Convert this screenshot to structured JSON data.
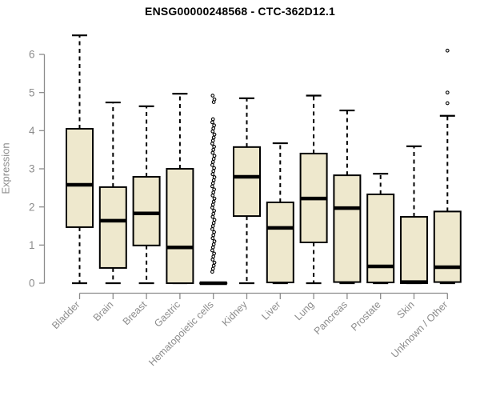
{
  "chart_data": {
    "type": "boxplot",
    "title": "ENSG00000248568 - CTC-362D12.1",
    "ylabel": "Expression",
    "xlabel": "",
    "ylim": [
      0,
      6.6
    ],
    "yticks": [
      0,
      1,
      2,
      3,
      4,
      5,
      6
    ],
    "grid": false,
    "legend": "none",
    "colors": {
      "box_fill": "#EEE8CD",
      "box_border": "#000000",
      "median": "#000000",
      "whisker": "#000000",
      "axis": "#8c8c8c",
      "tick_label": "#8c8c8c",
      "title": "#000000",
      "background": "#ffffff",
      "outlier_fill": "#ffffff"
    },
    "categories": [
      "Bladder",
      "Brain",
      "Breast",
      "Gastric",
      "Hematopoietic cells",
      "Kidney",
      "Liver",
      "Lung",
      "Pancreas",
      "Prostate",
      "Skin",
      "Unknown / Other"
    ],
    "series": [
      {
        "label": "Bladder",
        "whisker_low": 0,
        "q1": 1.47,
        "median": 2.58,
        "q3": 4.05,
        "whisker_high": 6.5,
        "outliers": []
      },
      {
        "label": "Brain",
        "whisker_low": 0,
        "q1": 0.4,
        "median": 1.64,
        "q3": 2.52,
        "whisker_high": 4.74,
        "outliers": []
      },
      {
        "label": "Breast",
        "whisker_low": 0,
        "q1": 0.99,
        "median": 1.83,
        "q3": 2.79,
        "whisker_high": 4.64,
        "outliers": []
      },
      {
        "label": "Gastric",
        "whisker_low": 0,
        "q1": 0,
        "median": 0.94,
        "q3": 3.0,
        "whisker_high": 4.97,
        "outliers": []
      },
      {
        "label": "Hematopoietic cells",
        "whisker_low": 0,
        "q1": 0,
        "median": 0,
        "q3": 0,
        "whisker_high": 0,
        "outliers": [
          0.3,
          0.38,
          0.46,
          0.54,
          0.62,
          0.7,
          0.78,
          0.86,
          0.94,
          1.02,
          1.1,
          1.18,
          1.26,
          1.34,
          1.42,
          1.5,
          1.58,
          1.66,
          1.74,
          1.82,
          1.9,
          1.98,
          2.06,
          2.14,
          2.22,
          2.3,
          2.38,
          2.46,
          2.54,
          2.62,
          2.7,
          2.78,
          2.86,
          2.94,
          3.02,
          3.1,
          3.18,
          3.26,
          3.34,
          3.42,
          3.5,
          3.58,
          3.66,
          3.74,
          3.82,
          3.9,
          3.98,
          4.06,
          4.14,
          4.22,
          4.3,
          4.75,
          4.82,
          4.92
        ]
      },
      {
        "label": "Kidney",
        "whisker_low": 0,
        "q1": 1.76,
        "median": 2.79,
        "q3": 3.57,
        "whisker_high": 4.85,
        "outliers": []
      },
      {
        "label": "Liver",
        "whisker_low": 0,
        "q1": 0.02,
        "median": 1.45,
        "q3": 2.12,
        "whisker_high": 3.67,
        "outliers": []
      },
      {
        "label": "Lung",
        "whisker_low": 0,
        "q1": 1.07,
        "median": 2.22,
        "q3": 3.4,
        "whisker_high": 4.92,
        "outliers": []
      },
      {
        "label": "Pancreas",
        "whisker_low": 0,
        "q1": 0.03,
        "median": 1.97,
        "q3": 2.83,
        "whisker_high": 4.53,
        "outliers": []
      },
      {
        "label": "Prostate",
        "whisker_low": 0,
        "q1": 0.02,
        "median": 0.44,
        "q3": 2.33,
        "whisker_high": 2.87,
        "outliers": []
      },
      {
        "label": "Skin",
        "whisker_low": 0,
        "q1": 0,
        "median": 0.03,
        "q3": 1.74,
        "whisker_high": 3.59,
        "outliers": []
      },
      {
        "label": "Unknown / Other",
        "whisker_low": 0,
        "q1": 0.03,
        "median": 0.42,
        "q3": 1.88,
        "whisker_high": 4.39,
        "outliers": [
          4.72,
          5.0,
          6.1
        ]
      }
    ]
  }
}
